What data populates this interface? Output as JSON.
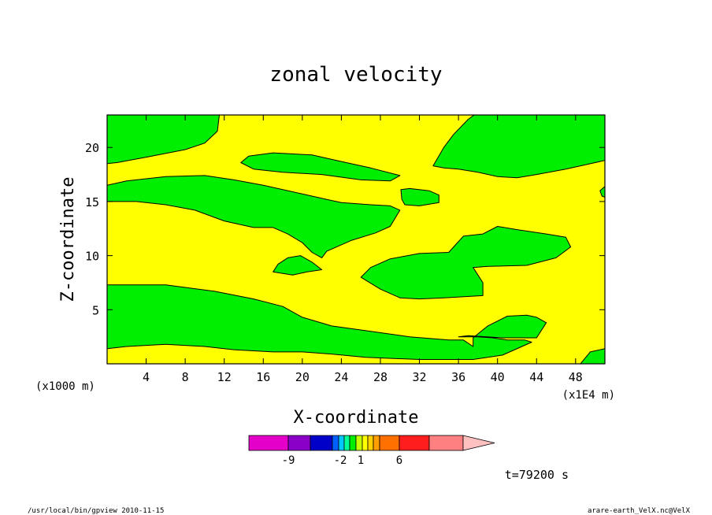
{
  "chart_data": {
    "type": "heatmap",
    "title": "zonal velocity",
    "xlabel": "X-coordinate",
    "ylabel": "Z-coordinate",
    "x_unit_left": "(x1000 m)",
    "x_unit_right": "(x1E4 m)",
    "xlim": [
      0,
      51
    ],
    "ylim": [
      0,
      23
    ],
    "x_ticks": [
      4,
      8,
      12,
      16,
      20,
      24,
      28,
      32,
      36,
      40,
      44,
      48
    ],
    "x_tick_labels": [
      "4",
      "8",
      "12",
      "16",
      "20",
      "24",
      "28",
      "32",
      "36",
      "40",
      "44",
      "48"
    ],
    "y_ticks": [
      5,
      10,
      15,
      20
    ],
    "y_tick_labels": [
      "5",
      "10",
      "15",
      "20"
    ],
    "background_level": {
      "range": "-1 to 0",
      "color": "#ffff00"
    },
    "contour_regions": [
      {
        "name": "upper-left",
        "color": "#00ee00",
        "points": [
          [
            0,
            23
          ],
          [
            11.5,
            23
          ],
          [
            11.3,
            21.5
          ],
          [
            10,
            20.4
          ],
          [
            8,
            19.8
          ],
          [
            4,
            19.1
          ],
          [
            1,
            18.6
          ],
          [
            0,
            18.5
          ]
        ]
      },
      {
        "name": "upper-band-left",
        "color": "#00ee00",
        "points": [
          [
            0,
            16.5
          ],
          [
            2,
            16.9
          ],
          [
            6,
            17.3
          ],
          [
            10,
            17.4
          ],
          [
            13,
            17
          ],
          [
            16,
            16.5
          ],
          [
            20,
            15.7
          ],
          [
            22.5,
            15.2
          ],
          [
            24,
            14.9
          ],
          [
            27,
            14.7
          ],
          [
            29,
            14.6
          ],
          [
            30,
            14.2
          ],
          [
            29,
            12.7
          ],
          [
            27.5,
            12.1
          ],
          [
            25,
            11.4
          ],
          [
            22.5,
            10.4
          ],
          [
            22,
            9.8
          ],
          [
            21,
            10.3
          ],
          [
            20,
            11.2
          ],
          [
            18.5,
            12
          ],
          [
            17,
            12.6
          ],
          [
            15,
            12.6
          ],
          [
            12,
            13.2
          ],
          [
            9,
            14.2
          ],
          [
            6,
            14.7
          ],
          [
            3,
            15
          ],
          [
            0,
            15
          ]
        ]
      },
      {
        "name": "upper-lens",
        "color": "#00ee00",
        "points": [
          [
            13.7,
            18.6
          ],
          [
            14.5,
            19.2
          ],
          [
            17,
            19.5
          ],
          [
            21,
            19.3
          ],
          [
            24,
            18.7
          ],
          [
            27,
            18.1
          ],
          [
            30,
            17.4
          ],
          [
            29,
            16.9
          ],
          [
            26,
            17
          ],
          [
            22,
            17.5
          ],
          [
            18,
            17.7
          ],
          [
            15,
            18
          ]
        ]
      },
      {
        "name": "small-blob-right",
        "color": "#00ee00",
        "points": [
          [
            30.1,
            16.1
          ],
          [
            31,
            16.2
          ],
          [
            33,
            16
          ],
          [
            34,
            15.6
          ],
          [
            34,
            14.9
          ],
          [
            32,
            14.6
          ],
          [
            30.5,
            14.7
          ],
          [
            30.2,
            15.2
          ]
        ]
      },
      {
        "name": "upper-right",
        "color": "#00ee00",
        "points": [
          [
            33.4,
            18.3
          ],
          [
            34.5,
            20
          ],
          [
            35.5,
            21.2
          ],
          [
            37,
            22.6
          ],
          [
            37.6,
            23
          ],
          [
            51,
            23
          ],
          [
            51,
            18.8
          ],
          [
            49,
            18.4
          ],
          [
            47,
            18
          ],
          [
            44,
            17.5
          ],
          [
            42,
            17.2
          ],
          [
            40,
            17.3
          ],
          [
            38,
            17.7
          ],
          [
            36,
            18
          ],
          [
            34.5,
            18.1
          ]
        ]
      },
      {
        "name": "right-edge-nub",
        "color": "#00ee00",
        "points": [
          [
            51,
            16.4
          ],
          [
            50.5,
            16
          ],
          [
            50.7,
            15.5
          ],
          [
            51,
            15.4
          ]
        ]
      },
      {
        "name": "middle-lens",
        "color": "#00ee00",
        "points": [
          [
            17,
            8.5
          ],
          [
            17.5,
            9.2
          ],
          [
            18.5,
            9.8
          ],
          [
            19.8,
            10
          ],
          [
            21,
            9.4
          ],
          [
            22,
            8.7
          ],
          [
            20.5,
            8.5
          ],
          [
            19,
            8.2
          ]
        ]
      },
      {
        "name": "middle-right-band",
        "color": "#00ee00",
        "points": [
          [
            26,
            8
          ],
          [
            27,
            8.9
          ],
          [
            29,
            9.7
          ],
          [
            32,
            10.2
          ],
          [
            35,
            10.3
          ],
          [
            36.5,
            11.8
          ],
          [
            38.5,
            12
          ],
          [
            40,
            12.7
          ],
          [
            42,
            12.4
          ],
          [
            45,
            12
          ],
          [
            47,
            11.7
          ],
          [
            47.5,
            10.8
          ],
          [
            46,
            9.8
          ],
          [
            43,
            9.1
          ],
          [
            39,
            9
          ],
          [
            37.5,
            8.9
          ],
          [
            38.5,
            7.5
          ],
          [
            38.5,
            6.3
          ],
          [
            34.5,
            6.1
          ],
          [
            32,
            6
          ],
          [
            30,
            6.1
          ],
          [
            28,
            6.9
          ]
        ]
      },
      {
        "name": "lower-band",
        "color": "#00ee00",
        "points": [
          [
            0,
            7.3
          ],
          [
            6,
            7.3
          ],
          [
            11,
            6.7
          ],
          [
            15,
            6
          ],
          [
            18,
            5.3
          ],
          [
            20,
            4.3
          ],
          [
            23,
            3.5
          ],
          [
            27,
            3
          ],
          [
            31,
            2.5
          ],
          [
            35,
            2.2
          ],
          [
            36.5,
            2.2
          ],
          [
            37.5,
            1.6
          ],
          [
            37.5,
            2.4
          ],
          [
            39,
            3.5
          ],
          [
            41,
            4.4
          ],
          [
            43,
            4.5
          ],
          [
            44,
            4.3
          ],
          [
            45,
            3.8
          ],
          [
            44,
            2.4
          ],
          [
            40.5,
            2.4
          ],
          [
            37,
            2.6
          ],
          [
            36,
            2.5
          ],
          [
            38,
            2.5
          ],
          [
            39.5,
            2.4
          ],
          [
            41,
            2.2
          ],
          [
            42.8,
            2.2
          ],
          [
            43.5,
            2
          ],
          [
            40.5,
            0.8
          ],
          [
            37.5,
            0.4
          ],
          [
            32,
            0.4
          ],
          [
            26.5,
            0.6
          ],
          [
            23,
            0.9
          ],
          [
            20,
            1.1
          ],
          [
            17,
            1.1
          ],
          [
            13,
            1.3
          ],
          [
            10,
            1.6
          ],
          [
            6,
            1.8
          ],
          [
            2,
            1.6
          ],
          [
            0,
            1.4
          ]
        ]
      },
      {
        "name": "bottom-right",
        "color": "#00ee00",
        "points": [
          [
            48.5,
            0
          ],
          [
            51,
            0
          ],
          [
            51,
            1.4
          ],
          [
            49.5,
            1.1
          ]
        ]
      }
    ],
    "colorbar": {
      "colors": [
        "#e400c8",
        "#8a00c8",
        "#0000c8",
        "#0060ff",
        "#00c8ff",
        "#00ff96",
        "#00ee00",
        "#c8ff00",
        "#ffff00",
        "#ffd000",
        "#ffa000",
        "#ff7000",
        "#ff1e1e",
        "#ff8080",
        "#ffc0c0"
      ],
      "tick_labels": [
        "-9",
        "-2",
        "1",
        "6"
      ]
    },
    "time_label": "t=79200 s"
  },
  "footer": {
    "left": "/usr/local/bin/gpview  2010-11-15",
    "right": "arare-earth_VelX.nc@VelX"
  }
}
